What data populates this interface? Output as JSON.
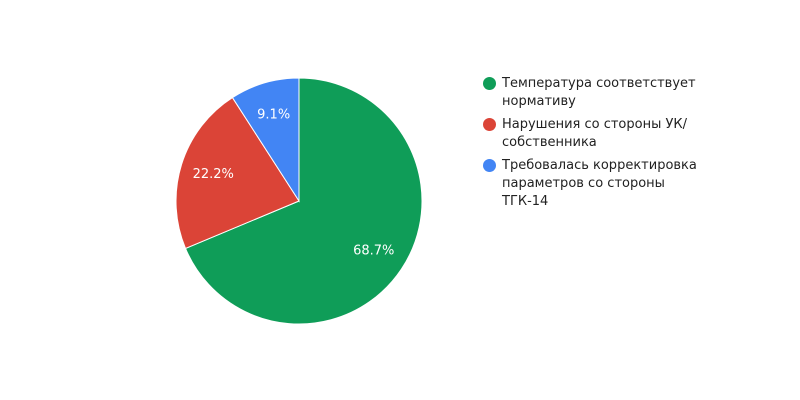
{
  "chart_data": {
    "type": "pie",
    "slices": [
      {
        "label": "Температура соответствует нормативу",
        "value": 68.7,
        "display": "68.7%",
        "color": "#0f9d58"
      },
      {
        "label": "Нарушения со стороны УК/ собственника",
        "value": 22.2,
        "display": "22.2%",
        "color": "#db4437"
      },
      {
        "label": "Требовалась корректировка параметров со стороны ТГК-14",
        "value": 9.1,
        "display": "9.1%",
        "color": "#4285f4"
      }
    ],
    "start_angle": "12 o'clock",
    "direction": "clockwise",
    "legend_position": "right"
  }
}
